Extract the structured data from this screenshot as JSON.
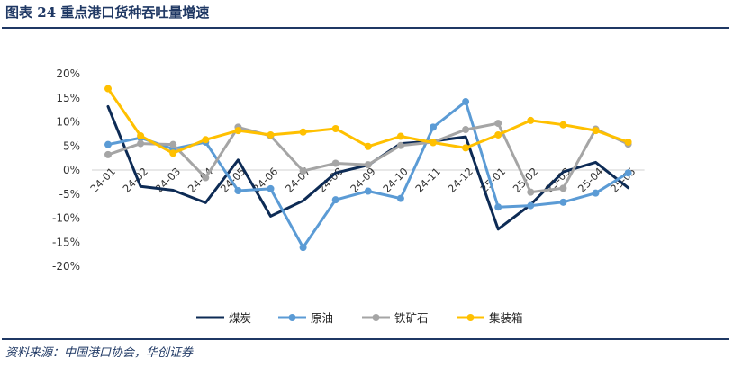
{
  "header": {
    "title": "图表 24    重点港口货种吞吐量增速"
  },
  "footer": {
    "source": "资料来源：中国港口协会，华创证券"
  },
  "chart_data": {
    "type": "line",
    "categories": [
      "24-01",
      "24-02",
      "24-03",
      "24-04",
      "24-05",
      "24-06",
      "24-07",
      "24-08",
      "24-09",
      "24-10",
      "24-11",
      "24-12",
      "25-01",
      "25-02",
      "25-03",
      "25-04",
      "25-05"
    ],
    "ylim": [
      -20,
      20
    ],
    "yticks": [
      20,
      15,
      10,
      5,
      0,
      -5,
      -10,
      -15,
      -20
    ],
    "ytick_labels": [
      "20%",
      "15%",
      "10%",
      "5%",
      "0%",
      "-5%",
      "-10%",
      "-15%",
      "-20%"
    ],
    "grid": false,
    "legend_position": "bottom",
    "series": [
      {
        "name": "煤炭",
        "color": "#0d2b55",
        "marker": false,
        "values": [
          13.2,
          -3.4,
          -4.2,
          -6.8,
          2.1,
          -9.6,
          -6.4,
          -0.6,
          1.0,
          5.5,
          6.0,
          6.9,
          -12.3,
          -7.2,
          -0.4,
          1.6,
          -3.7
        ]
      },
      {
        "name": "原油",
        "color": "#5b9bd5",
        "marker": true,
        "values": [
          5.3,
          6.7,
          4.4,
          5.8,
          -4.3,
          -3.9,
          -16.1,
          -6.2,
          -4.4,
          -5.9,
          8.9,
          14.2,
          -7.7,
          -7.4,
          -6.7,
          -4.8,
          -0.6
        ]
      },
      {
        "name": "铁矿石",
        "color": "#a5a5a5",
        "marker": true,
        "values": [
          3.2,
          5.5,
          5.3,
          -1.6,
          8.9,
          7.1,
          -0.2,
          1.4,
          1.1,
          5.1,
          5.8,
          8.4,
          9.7,
          -4.6,
          -3.8,
          8.5,
          5.4
        ]
      },
      {
        "name": "集装箱",
        "color": "#ffc000",
        "marker": true,
        "values": [
          16.9,
          7.1,
          3.5,
          6.3,
          8.2,
          7.3,
          7.9,
          8.6,
          4.9,
          7.0,
          5.7,
          4.6,
          7.3,
          10.3,
          9.4,
          8.2,
          5.8
        ]
      }
    ]
  }
}
